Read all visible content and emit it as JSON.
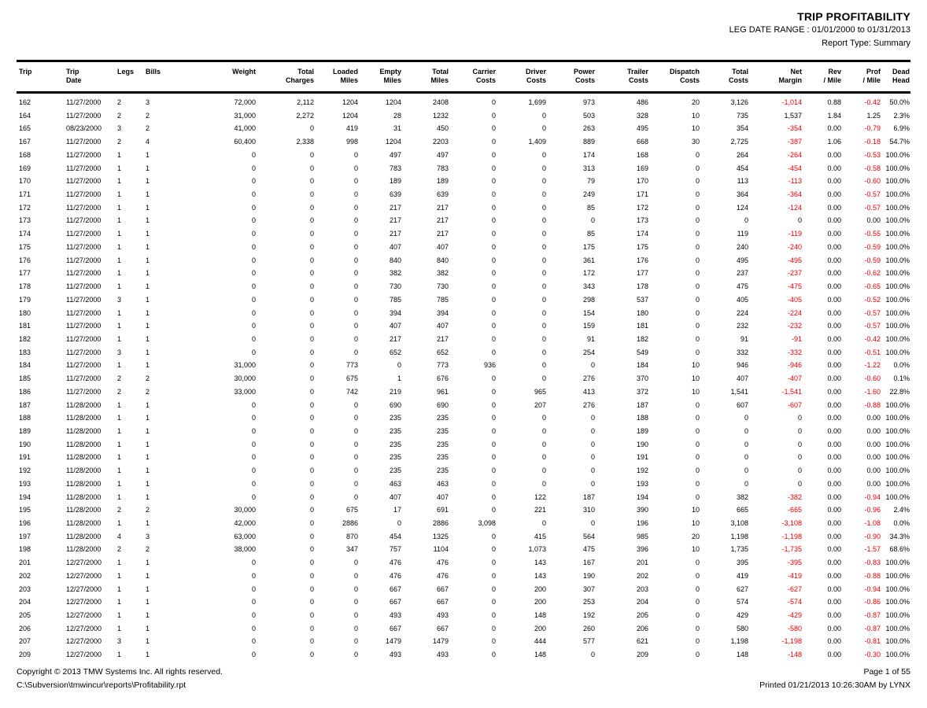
{
  "report": {
    "title": "TRIP PROFITABILITY",
    "date_range": "LEG DATE RANGE : 01/01/2000 to 01/31/2013",
    "report_type": "Report Type: Summary"
  },
  "colors": {
    "text": "#000000",
    "negative_value": "#F00000",
    "rule_line": "#000000",
    "background": "#FFFFFF"
  },
  "table": {
    "columns": [
      {
        "label1": "Trip",
        "label2": "",
        "align": "left"
      },
      {
        "label1": "Trip",
        "label2": "Date",
        "align": "left"
      },
      {
        "label1": "Legs",
        "label2": "",
        "align": "left"
      },
      {
        "label1": "Bills",
        "label2": "",
        "align": "left"
      },
      {
        "label1": "Weight",
        "label2": "",
        "align": "right"
      },
      {
        "label1": "Total",
        "label2": "Charges",
        "align": "right"
      },
      {
        "label1": "Loaded",
        "label2": "Miles",
        "align": "right"
      },
      {
        "label1": "Empty",
        "label2": "Miles",
        "align": "right"
      },
      {
        "label1": "Total",
        "label2": "Miles",
        "align": "right"
      },
      {
        "label1": "Carrier",
        "label2": "Costs",
        "align": "right"
      },
      {
        "label1": "Driver",
        "label2": "Costs",
        "align": "right"
      },
      {
        "label1": "Power",
        "label2": "Costs",
        "align": "right"
      },
      {
        "label1": "Trailer",
        "label2": "Costs",
        "align": "right"
      },
      {
        "label1": "Dispatch",
        "label2": "Costs",
        "align": "right"
      },
      {
        "label1": "Total",
        "label2": "Costs",
        "align": "right"
      },
      {
        "label1": "Net",
        "label2": "Margin",
        "align": "right"
      },
      {
        "label1": "Rev",
        "label2": "/ Mile",
        "align": "right"
      },
      {
        "label1": "Prof",
        "label2": "/ Mile",
        "align": "right"
      },
      {
        "label1": "Dead",
        "label2": "Head",
        "align": "right"
      }
    ],
    "rows": [
      [
        "162",
        "11/27/2000",
        "2",
        "3",
        "72,000",
        "2,112",
        "1204",
        "1204",
        "2408",
        "0",
        "1,699",
        "973",
        "486",
        "20",
        "3,126",
        "-1,014",
        "0.88",
        "-0.42",
        "50.0%"
      ],
      [
        "164",
        "11/27/2000",
        "2",
        "2",
        "31,000",
        "2,272",
        "1204",
        "28",
        "1232",
        "0",
        "0",
        "503",
        "328",
        "10",
        "735",
        "1,537",
        "1.84",
        "1.25",
        "2.3%"
      ],
      [
        "165",
        "08/23/2000",
        "3",
        "2",
        "41,000",
        "0",
        "419",
        "31",
        "450",
        "0",
        "0",
        "263",
        "495",
        "10",
        "354",
        "-354",
        "0.00",
        "-0.79",
        "6.9%"
      ],
      [
        "167",
        "11/27/2000",
        "2",
        "4",
        "60,400",
        "2,338",
        "998",
        "1204",
        "2203",
        "0",
        "1,409",
        "889",
        "668",
        "30",
        "2,725",
        "-387",
        "1.06",
        "-0.18",
        "54.7%"
      ],
      [
        "168",
        "11/27/2000",
        "1",
        "1",
        "0",
        "0",
        "0",
        "497",
        "497",
        "0",
        "0",
        "174",
        "168",
        "0",
        "264",
        "-264",
        "0.00",
        "-0.53",
        "100.0%"
      ],
      [
        "169",
        "11/27/2000",
        "1",
        "1",
        "0",
        "0",
        "0",
        "783",
        "783",
        "0",
        "0",
        "313",
        "169",
        "0",
        "454",
        "-454",
        "0.00",
        "-0.58",
        "100.0%"
      ],
      [
        "170",
        "11/27/2000",
        "1",
        "1",
        "0",
        "0",
        "0",
        "189",
        "189",
        "0",
        "0",
        "79",
        "170",
        "0",
        "113",
        "-113",
        "0.00",
        "-0.60",
        "100.0%"
      ],
      [
        "171",
        "11/27/2000",
        "1",
        "1",
        "0",
        "0",
        "0",
        "639",
        "639",
        "0",
        "0",
        "249",
        "171",
        "0",
        "364",
        "-364",
        "0.00",
        "-0.57",
        "100.0%"
      ],
      [
        "172",
        "11/27/2000",
        "1",
        "1",
        "0",
        "0",
        "0",
        "217",
        "217",
        "0",
        "0",
        "85",
        "172",
        "0",
        "124",
        "-124",
        "0.00",
        "-0.57",
        "100.0%"
      ],
      [
        "173",
        "11/27/2000",
        "1",
        "1",
        "0",
        "0",
        "0",
        "217",
        "217",
        "0",
        "0",
        "0",
        "173",
        "0",
        "0",
        "0",
        "0.00",
        "0.00",
        "100.0%"
      ],
      [
        "174",
        "11/27/2000",
        "1",
        "1",
        "0",
        "0",
        "0",
        "217",
        "217",
        "0",
        "0",
        "85",
        "174",
        "0",
        "119",
        "-119",
        "0.00",
        "-0.55",
        "100.0%"
      ],
      [
        "175",
        "11/27/2000",
        "1",
        "1",
        "0",
        "0",
        "0",
        "407",
        "407",
        "0",
        "0",
        "175",
        "175",
        "0",
        "240",
        "-240",
        "0.00",
        "-0.59",
        "100.0%"
      ],
      [
        "176",
        "11/27/2000",
        "1",
        "1",
        "0",
        "0",
        "0",
        "840",
        "840",
        "0",
        "0",
        "361",
        "176",
        "0",
        "495",
        "-495",
        "0.00",
        "-0.59",
        "100.0%"
      ],
      [
        "177",
        "11/27/2000",
        "1",
        "1",
        "0",
        "0",
        "0",
        "382",
        "382",
        "0",
        "0",
        "172",
        "177",
        "0",
        "237",
        "-237",
        "0.00",
        "-0.62",
        "100.0%"
      ],
      [
        "178",
        "11/27/2000",
        "1",
        "1",
        "0",
        "0",
        "0",
        "730",
        "730",
        "0",
        "0",
        "343",
        "178",
        "0",
        "475",
        "-475",
        "0.00",
        "-0.65",
        "100.0%"
      ],
      [
        "179",
        "11/27/2000",
        "3",
        "1",
        "0",
        "0",
        "0",
        "785",
        "785",
        "0",
        "0",
        "298",
        "537",
        "0",
        "405",
        "-405",
        "0.00",
        "-0.52",
        "100.0%"
      ],
      [
        "180",
        "11/27/2000",
        "1",
        "1",
        "0",
        "0",
        "0",
        "394",
        "394",
        "0",
        "0",
        "154",
        "180",
        "0",
        "224",
        "-224",
        "0.00",
        "-0.57",
        "100.0%"
      ],
      [
        "181",
        "11/27/2000",
        "1",
        "1",
        "0",
        "0",
        "0",
        "407",
        "407",
        "0",
        "0",
        "159",
        "181",
        "0",
        "232",
        "-232",
        "0.00",
        "-0.57",
        "100.0%"
      ],
      [
        "182",
        "11/27/2000",
        "1",
        "1",
        "0",
        "0",
        "0",
        "217",
        "217",
        "0",
        "0",
        "91",
        "182",
        "0",
        "91",
        "-91",
        "0.00",
        "-0.42",
        "100.0%"
      ],
      [
        "183",
        "11/27/2000",
        "3",
        "1",
        "0",
        "0",
        "0",
        "652",
        "652",
        "0",
        "0",
        "254",
        "549",
        "0",
        "332",
        "-332",
        "0.00",
        "-0.51",
        "100.0%"
      ],
      [
        "184",
        "11/27/2000",
        "1",
        "1",
        "31,000",
        "0",
        "773",
        "0",
        "773",
        "936",
        "0",
        "0",
        "184",
        "10",
        "946",
        "-946",
        "0.00",
        "-1.22",
        "0.0%"
      ],
      [
        "185",
        "11/27/2000",
        "2",
        "2",
        "30,000",
        "0",
        "675",
        "1",
        "676",
        "0",
        "0",
        "276",
        "370",
        "10",
        "407",
        "-407",
        "0.00",
        "-0.60",
        "0.1%"
      ],
      [
        "186",
        "11/27/2000",
        "2",
        "2",
        "33,000",
        "0",
        "742",
        "219",
        "961",
        "0",
        "965",
        "413",
        "372",
        "10",
        "1,541",
        "-1,541",
        "0.00",
        "-1.60",
        "22.8%"
      ],
      [
        "187",
        "11/28/2000",
        "1",
        "1",
        "0",
        "0",
        "0",
        "690",
        "690",
        "0",
        "207",
        "276",
        "187",
        "0",
        "607",
        "-607",
        "0.00",
        "-0.88",
        "100.0%"
      ],
      [
        "188",
        "11/28/2000",
        "1",
        "1",
        "0",
        "0",
        "0",
        "235",
        "235",
        "0",
        "0",
        "0",
        "188",
        "0",
        "0",
        "0",
        "0.00",
        "0.00",
        "100.0%"
      ],
      [
        "189",
        "11/28/2000",
        "1",
        "1",
        "0",
        "0",
        "0",
        "235",
        "235",
        "0",
        "0",
        "0",
        "189",
        "0",
        "0",
        "0",
        "0.00",
        "0.00",
        "100.0%"
      ],
      [
        "190",
        "11/28/2000",
        "1",
        "1",
        "0",
        "0",
        "0",
        "235",
        "235",
        "0",
        "0",
        "0",
        "190",
        "0",
        "0",
        "0",
        "0.00",
        "0.00",
        "100.0%"
      ],
      [
        "191",
        "11/28/2000",
        "1",
        "1",
        "0",
        "0",
        "0",
        "235",
        "235",
        "0",
        "0",
        "0",
        "191",
        "0",
        "0",
        "0",
        "0.00",
        "0.00",
        "100.0%"
      ],
      [
        "192",
        "11/28/2000",
        "1",
        "1",
        "0",
        "0",
        "0",
        "235",
        "235",
        "0",
        "0",
        "0",
        "192",
        "0",
        "0",
        "0",
        "0.00",
        "0.00",
        "100.0%"
      ],
      [
        "193",
        "11/28/2000",
        "1",
        "1",
        "0",
        "0",
        "0",
        "463",
        "463",
        "0",
        "0",
        "0",
        "193",
        "0",
        "0",
        "0",
        "0.00",
        "0.00",
        "100.0%"
      ],
      [
        "194",
        "11/28/2000",
        "1",
        "1",
        "0",
        "0",
        "0",
        "407",
        "407",
        "0",
        "122",
        "187",
        "194",
        "0",
        "382",
        "-382",
        "0.00",
        "-0.94",
        "100.0%"
      ],
      [
        "195",
        "11/28/2000",
        "2",
        "2",
        "30,000",
        "0",
        "675",
        "17",
        "691",
        "0",
        "221",
        "310",
        "390",
        "10",
        "665",
        "-665",
        "0.00",
        "-0.96",
        "2.4%"
      ],
      [
        "196",
        "11/28/2000",
        "1",
        "1",
        "42,000",
        "0",
        "2886",
        "0",
        "2886",
        "3,098",
        "0",
        "0",
        "196",
        "10",
        "3,108",
        "-3,108",
        "0.00",
        "-1.08",
        "0.0%"
      ],
      [
        "197",
        "11/28/2000",
        "4",
        "3",
        "63,000",
        "0",
        "870",
        "454",
        "1325",
        "0",
        "415",
        "564",
        "985",
        "20",
        "1,198",
        "-1,198",
        "0.00",
        "-0.90",
        "34.3%"
      ],
      [
        "198",
        "11/28/2000",
        "2",
        "2",
        "38,000",
        "0",
        "347",
        "757",
        "1104",
        "0",
        "1,073",
        "475",
        "396",
        "10",
        "1,735",
        "-1,735",
        "0.00",
        "-1.57",
        "68.6%"
      ],
      [
        "201",
        "12/27/2000",
        "1",
        "1",
        "0",
        "0",
        "0",
        "476",
        "476",
        "0",
        "143",
        "167",
        "201",
        "0",
        "395",
        "-395",
        "0.00",
        "-0.83",
        "100.0%"
      ],
      [
        "202",
        "12/27/2000",
        "1",
        "1",
        "0",
        "0",
        "0",
        "476",
        "476",
        "0",
        "143",
        "190",
        "202",
        "0",
        "419",
        "-419",
        "0.00",
        "-0.88",
        "100.0%"
      ],
      [
        "203",
        "12/27/2000",
        "1",
        "1",
        "0",
        "0",
        "0",
        "667",
        "667",
        "0",
        "200",
        "307",
        "203",
        "0",
        "627",
        "-627",
        "0.00",
        "-0.94",
        "100.0%"
      ],
      [
        "204",
        "12/27/2000",
        "1",
        "1",
        "0",
        "0",
        "0",
        "667",
        "667",
        "0",
        "200",
        "253",
        "204",
        "0",
        "574",
        "-574",
        "0.00",
        "-0.86",
        "100.0%"
      ],
      [
        "205",
        "12/27/2000",
        "1",
        "1",
        "0",
        "0",
        "0",
        "493",
        "493",
        "0",
        "148",
        "192",
        "205",
        "0",
        "429",
        "-429",
        "0.00",
        "-0.87",
        "100.0%"
      ],
      [
        "206",
        "12/27/2000",
        "1",
        "1",
        "0",
        "0",
        "0",
        "667",
        "667",
        "0",
        "200",
        "260",
        "206",
        "0",
        "580",
        "-580",
        "0.00",
        "-0.87",
        "100.0%"
      ],
      [
        "207",
        "12/27/2000",
        "3",
        "1",
        "0",
        "0",
        "0",
        "1479",
        "1479",
        "0",
        "444",
        "577",
        "621",
        "0",
        "1,198",
        "-1,198",
        "0.00",
        "-0.81",
        "100.0%"
      ],
      [
        "209",
        "12/27/2000",
        "1",
        "1",
        "0",
        "0",
        "0",
        "493",
        "493",
        "0",
        "148",
        "0",
        "209",
        "0",
        "148",
        "-148",
        "0.00",
        "-0.30",
        "100.0%"
      ]
    ]
  },
  "footer": {
    "copyright": "Copyright © 2013 TMW Systems Inc. All rights reserved.",
    "path": "C:\\Subversion\\tmwincur\\reports\\Profitability.rpt",
    "page": "Page 1 of 55",
    "printed": "Printed 01/21/2013 10:26:30AM by LYNX"
  }
}
